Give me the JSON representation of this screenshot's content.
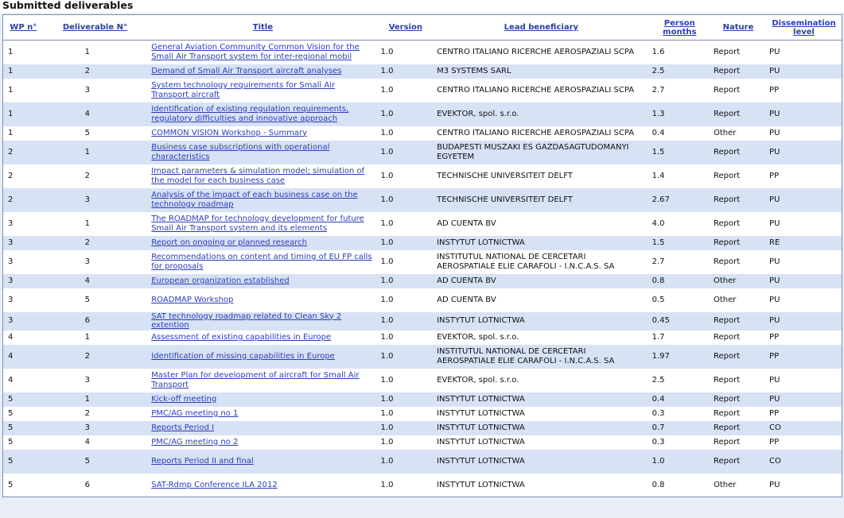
{
  "page": {
    "title": "Submitted deliverables"
  },
  "table": {
    "headers": [
      "WP n°",
      "Deliverable N°",
      "Title",
      "Version",
      "Lead beneficiary",
      "Person months",
      "Nature",
      "Dissemination level"
    ],
    "rows": [
      {
        "wp": "1",
        "del": "1",
        "title": "General Aviation Community Common Vision for the Small Air Transport system for inter-regional mobil",
        "version": "1.0",
        "lead": "CENTRO ITALIANO RICERCHE AEROSPAZIALI SCPA",
        "pm": "1.6",
        "nature": "Report",
        "diss": "PU"
      },
      {
        "wp": "1",
        "del": "2",
        "title": "Demand of Small Air Transport aircraft analyses",
        "version": "1.0",
        "lead": "M3 SYSTEMS SARL",
        "pm": "2.5",
        "nature": "Report",
        "diss": "PU"
      },
      {
        "wp": "1",
        "del": "3",
        "title": "System technology requirements for Small Air Transport aircraft",
        "version": "1.0",
        "lead": "CENTRO ITALIANO RICERCHE AEROSPAZIALI SCPA",
        "pm": "2.7",
        "nature": "Report",
        "diss": "PP"
      },
      {
        "wp": "1",
        "del": "4",
        "title": "Identification of existing regulation requirements, regulatory difficulties and innovative approach",
        "version": "1.0",
        "lead": "EVEKTOR, spol. s.r.o.",
        "pm": "1.3",
        "nature": "Report",
        "diss": "PU"
      },
      {
        "wp": "1",
        "del": "5",
        "title": "COMMON VISION Workshop - Summary",
        "version": "1.0",
        "lead": "CENTRO ITALIANO RICERCHE AEROSPAZIALI SCPA",
        "pm": "0.4",
        "nature": "Other",
        "diss": "PU"
      },
      {
        "wp": "2",
        "del": "1",
        "title": "Business case subscriptions with operational characteristics",
        "version": "1.0",
        "lead": "BUDAPESTI MUSZAKI ES GAZDASAGTUDOMANYI EGYETEM",
        "pm": "1.5",
        "nature": "Report",
        "diss": "PU"
      },
      {
        "wp": "2",
        "del": "2",
        "title": "Impact parameters & simulation model; simulation of the model for each business case",
        "version": "1.0",
        "lead": "TECHNISCHE UNIVERSITEIT DELFT",
        "pm": "1.4",
        "nature": "Report",
        "diss": "PP"
      },
      {
        "wp": "2",
        "del": "3",
        "title": "Analysis of the impact of each business case on the technology roadmap",
        "version": "1.0",
        "lead": "TECHNISCHE UNIVERSITEIT DELFT",
        "pm": "2.67",
        "nature": "Report",
        "diss": "PU"
      },
      {
        "wp": "3",
        "del": "1",
        "title": "The ROADMAP for technology development for future Small Air Transport system and its elements",
        "version": "1.0",
        "lead": "AD CUENTA BV",
        "pm": "4.0",
        "nature": "Report",
        "diss": "PU"
      },
      {
        "wp": "3",
        "del": "2",
        "title": "Report on ongoing or planned research",
        "version": "1.0",
        "lead": "INSTYTUT LOTNICTWA",
        "pm": "1.5",
        "nature": "Report",
        "diss": "RE"
      },
      {
        "wp": "3",
        "del": "3",
        "title": "Recommendations on content and timing of EU FP calls for proposals",
        "version": "1.0",
        "lead": "INSTITUTUL NATIONAL DE CERCETARI AEROSPATIALE ELIE CARAFOLI - I.N.C.A.S. SA",
        "pm": "2.7",
        "nature": "Report",
        "diss": "PU"
      },
      {
        "wp": "3",
        "del": "4",
        "title": "European organization established",
        "version": "1.0",
        "lead": "AD CUENTA BV",
        "pm": "0.8",
        "nature": "Other",
        "diss": "PU"
      },
      {
        "wp": "3",
        "del": "5",
        "title": "ROADMAP Workshop",
        "version": "1.0",
        "lead": "AD CUENTA BV",
        "pm": "0.5",
        "nature": "Other",
        "diss": "PU"
      },
      {
        "wp": "3",
        "del": "6",
        "title": "SAT technology roadmap related to Clean Sky 2 extention",
        "version": "1.0",
        "lead": "INSTYTUT LOTNICTWA",
        "pm": "0.45",
        "nature": "Report",
        "diss": "PU"
      },
      {
        "wp": "4",
        "del": "1",
        "title": "Assessment of existing capabilities in Europe",
        "version": "1.0",
        "lead": "EVEKTOR, spol. s.r.o.",
        "pm": "1.7",
        "nature": "Report",
        "diss": "PP"
      },
      {
        "wp": "4",
        "del": "2",
        "title": "Identification of missing capabilities in Europe",
        "version": "1.0",
        "lead": "INSTITUTUL NATIONAL DE CERCETARI AEROSPATIALE ELIE CARAFOLI - I.N.C.A.S. SA",
        "pm": "1.97",
        "nature": "Report",
        "diss": "PP"
      },
      {
        "wp": "4",
        "del": "3",
        "title": "Master Plan for development of aircraft for Small Air Transport",
        "version": "1.0",
        "lead": "EVEKTOR, spol. s.r.o.",
        "pm": "2.5",
        "nature": "Report",
        "diss": "PU"
      },
      {
        "wp": "5",
        "del": "1",
        "title": "Kick-off meeting",
        "version": "1.0",
        "lead": "INSTYTUT LOTNICTWA",
        "pm": "0.4",
        "nature": "Report",
        "diss": "PU"
      },
      {
        "wp": "5",
        "del": "2",
        "title": "PMC/AG meeting no 1",
        "version": "1.0",
        "lead": "INSTYTUT LOTNICTWA",
        "pm": "0.3",
        "nature": "Report",
        "diss": "PP"
      },
      {
        "wp": "5",
        "del": "3",
        "title": "Reports Period I",
        "version": "1.0",
        "lead": "INSTYTUT LOTNICTWA",
        "pm": "0.7",
        "nature": "Report",
        "diss": "CO"
      },
      {
        "wp": "5",
        "del": "4",
        "title": "PMC/AG meeting no 2",
        "version": "1.0",
        "lead": "INSTYTUT LOTNICTWA",
        "pm": "0.3",
        "nature": "Report",
        "diss": "PP"
      },
      {
        "wp": "5",
        "del": "5",
        "title": "Reports Period II and final",
        "version": "1.0",
        "lead": "INSTYTUT LOTNICTWA",
        "pm": "1.0",
        "nature": "Report",
        "diss": "CO"
      },
      {
        "wp": "5",
        "del": "6",
        "title": "SAT-Rdmp Conference ILA 2012",
        "version": "1.0",
        "lead": "INSTYTUT LOTNICTWA",
        "pm": "0.8",
        "nature": "Other",
        "diss": "PU"
      }
    ]
  }
}
